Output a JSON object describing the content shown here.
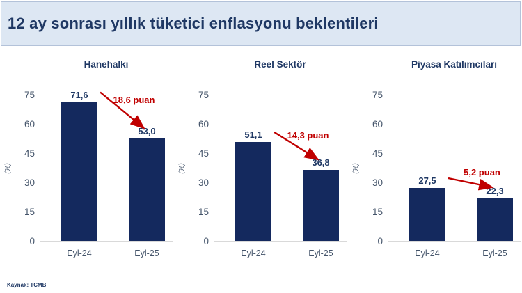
{
  "header": {
    "title": "12 ay sonrası yıllık tüketici enflasyonu beklentileri"
  },
  "footer": {
    "source": "Kaynak: TCMB"
  },
  "colors": {
    "bar": "#14295e",
    "accent_red": "#c00000",
    "header_bg": "#dde7f3",
    "title_text": "#1f3864",
    "axis_text": "#44546a",
    "axis_line": "#d9d9d9"
  },
  "chart_data": [
    {
      "type": "bar",
      "title": "Hanehalkı",
      "categories": [
        "Eyl-24",
        "Eyl-25"
      ],
      "values": [
        71.6,
        53.0
      ],
      "value_labels": [
        "71,6",
        "53,0"
      ],
      "change_label": "18,6 puan",
      "xlabel": "",
      "ylabel": "(%)",
      "ylim": [
        0,
        75
      ],
      "yticks": [
        0,
        15,
        30,
        45,
        60,
        75
      ],
      "grid": false,
      "legend": "none"
    },
    {
      "type": "bar",
      "title": "Reel Sektör",
      "categories": [
        "Eyl-24",
        "Eyl-25"
      ],
      "values": [
        51.1,
        36.8
      ],
      "value_labels": [
        "51,1",
        "36,8"
      ],
      "change_label": "14,3 puan",
      "xlabel": "",
      "ylabel": "(%)",
      "ylim": [
        0,
        75
      ],
      "yticks": [
        0,
        15,
        30,
        45,
        60,
        75
      ],
      "grid": false,
      "legend": "none"
    },
    {
      "type": "bar",
      "title": "Piyasa Katılımcıları",
      "categories": [
        "Eyl-24",
        "Eyl-25"
      ],
      "values": [
        27.5,
        22.3
      ],
      "value_labels": [
        "27,5",
        "22,3"
      ],
      "change_label": "5,2 puan",
      "xlabel": "",
      "ylabel": "(%)",
      "ylim": [
        0,
        75
      ],
      "yticks": [
        0,
        15,
        30,
        45,
        60,
        75
      ],
      "grid": false,
      "legend": "none"
    }
  ]
}
